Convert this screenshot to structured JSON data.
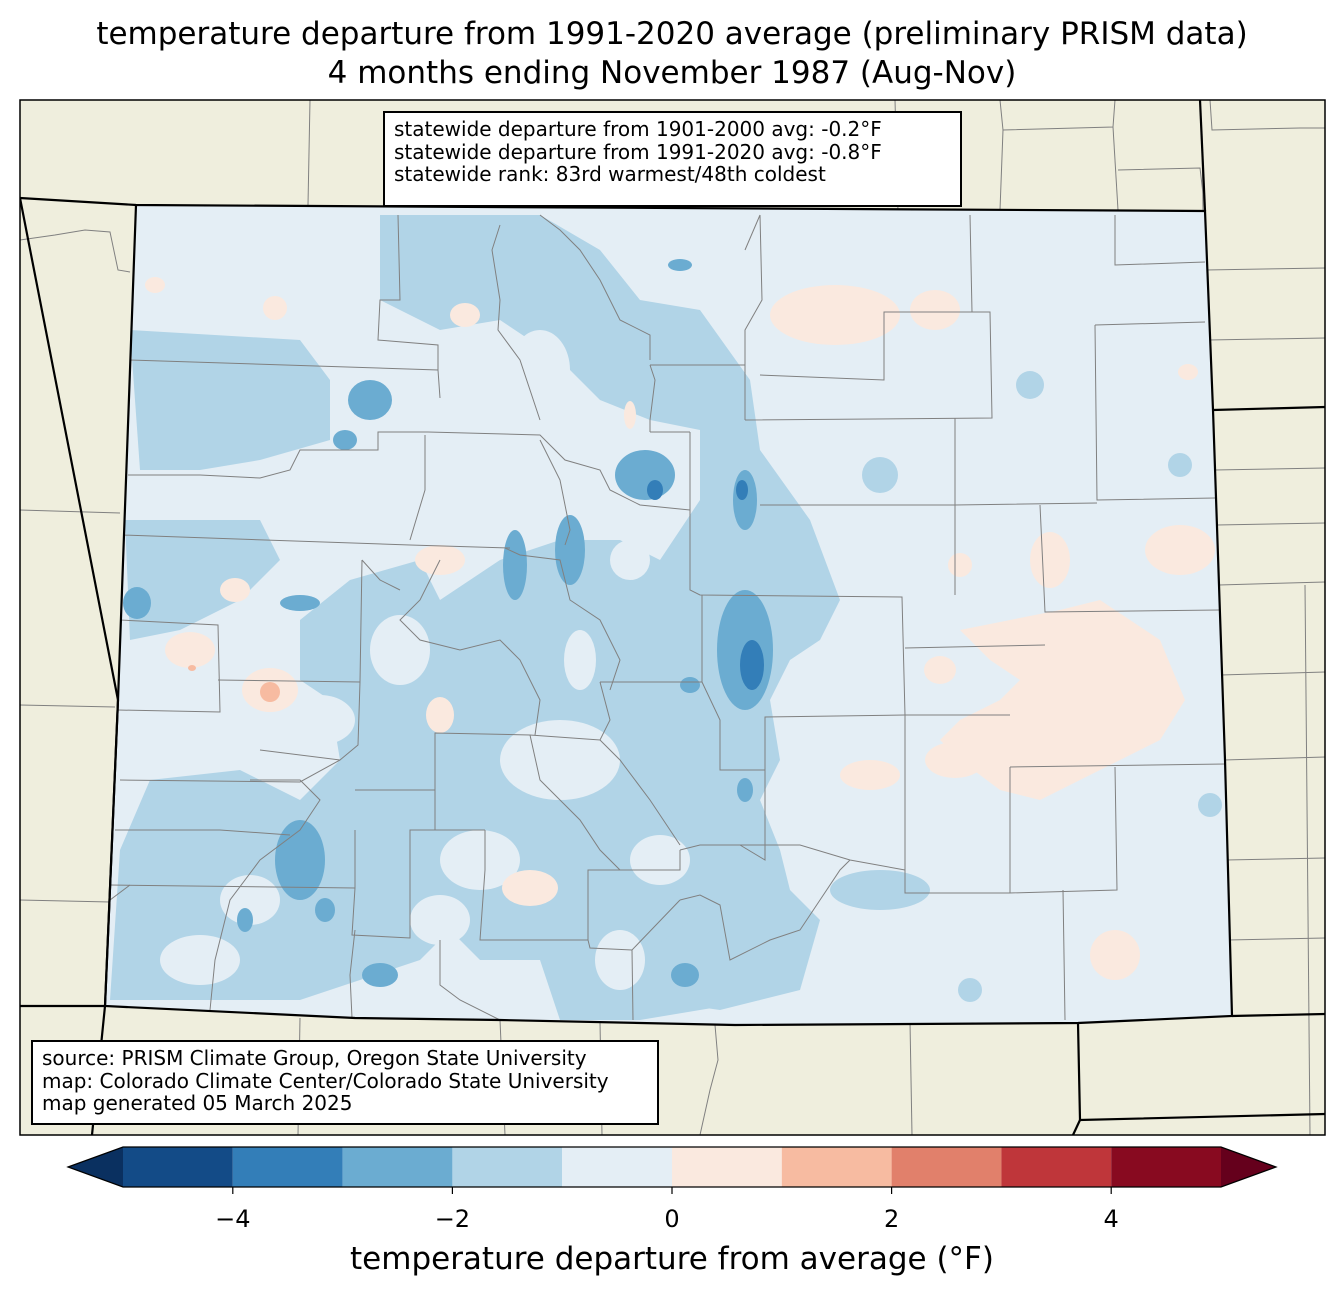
{
  "title": {
    "line1": "temperature departure from 1991-2020 average (preliminary PRISM data)",
    "line2": "4 months ending November 1987 (Aug-Nov)"
  },
  "stats": {
    "line1": "statewide departure from 1901-2000 avg: -0.2°F",
    "line2": "statewide departure from 1991-2020 avg: -0.8°F",
    "line3": "statewide rank: 83rd warmest/48th coldest"
  },
  "source": {
    "line1": "source: PRISM Climate Group, Oregon State University",
    "line2": "map: Colorado Climate Center/Colorado State University",
    "line3": "map generated 05 March 2025"
  },
  "colorbar": {
    "label": "temperature departure from average (°F)",
    "tick_labels": [
      "−4",
      "−2",
      "0",
      "2",
      "4"
    ],
    "tick_values": [
      -4,
      -2,
      0,
      2,
      4
    ],
    "range": [
      -5,
      5
    ],
    "bins": [
      {
        "from": -5,
        "to": -4,
        "color": "#134b87"
      },
      {
        "from": -4,
        "to": -3,
        "color": "#337eb8"
      },
      {
        "from": -3,
        "to": -2,
        "color": "#6bacd1"
      },
      {
        "from": -2,
        "to": -1,
        "color": "#b1d4e7"
      },
      {
        "from": -1,
        "to": 0,
        "color": "#e4eef5"
      },
      {
        "from": 0,
        "to": 1,
        "color": "#fae9df"
      },
      {
        "from": 1,
        "to": 2,
        "color": "#f7bba1"
      },
      {
        "from": 2,
        "to": 3,
        "color": "#e1806b"
      },
      {
        "from": 3,
        "to": 4,
        "color": "#bf363a"
      },
      {
        "from": 4,
        "to": 5,
        "color": "#880a20"
      }
    ],
    "under_color": "#0a3060",
    "over_color": "#65001c"
  },
  "colors": {
    "land": "#efeedd",
    "state_border": "#000000",
    "county_border": "#808080",
    "base_fill": "#e4eef5",
    "cool_1": "#b1d4e7",
    "cool_2": "#6bacd1",
    "cool_3": "#337eb8",
    "warm_1": "#fae9df",
    "warm_2": "#f7bba1"
  }
}
